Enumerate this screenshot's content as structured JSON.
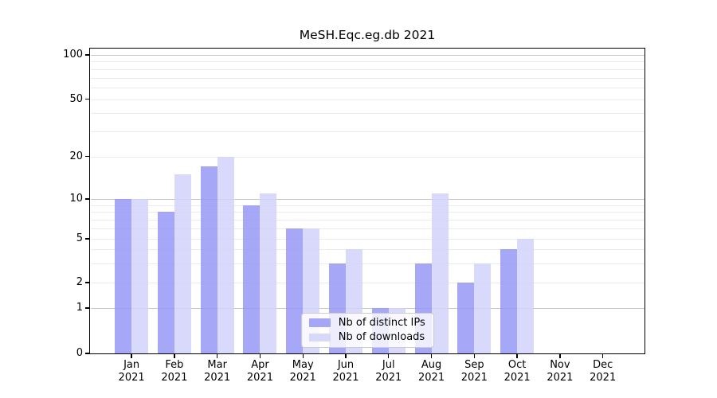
{
  "figure": {
    "title": "MeSH.Eqc.eg.db 2021"
  },
  "chart_data": {
    "type": "bar",
    "title": "MeSH.Eqc.eg.db 2021",
    "categories": [
      "Jan",
      "Feb",
      "Mar",
      "Apr",
      "May",
      "Jun",
      "Jul",
      "Aug",
      "Sep",
      "Oct",
      "Nov",
      "Dec"
    ],
    "category_year": "2021",
    "series": [
      {
        "name": "Nb of distinct IPs",
        "color": "#a6a6f7",
        "fill_rgba": "rgba(152,152,247,0.85)",
        "values": [
          10,
          8,
          17,
          9,
          6,
          3,
          1,
          3,
          2,
          4,
          0,
          0
        ]
      },
      {
        "name": "Nb of downloads",
        "color": "#d8d8fa",
        "fill_rgba": "rgba(210,210,250,0.85)",
        "values": [
          10,
          15,
          20,
          11,
          6,
          4,
          1,
          11,
          3,
          5,
          0,
          0
        ]
      }
    ],
    "yticks": [
      0,
      1,
      2,
      5,
      10,
      20,
      50,
      100
    ],
    "ylim": [
      0,
      110
    ],
    "yscale": "log-like (0 shown at baseline)",
    "grid": true,
    "legend": {
      "position": "lower center inside plot",
      "entries": [
        "Nb of distinct IPs",
        "Nb of downloads"
      ]
    },
    "colors": {
      "grid_minor": "#ebebeb",
      "grid_major": "#c8c8c8",
      "axis": "#000000",
      "legend_border": "#cccccc",
      "background": "#ffffff"
    }
  }
}
